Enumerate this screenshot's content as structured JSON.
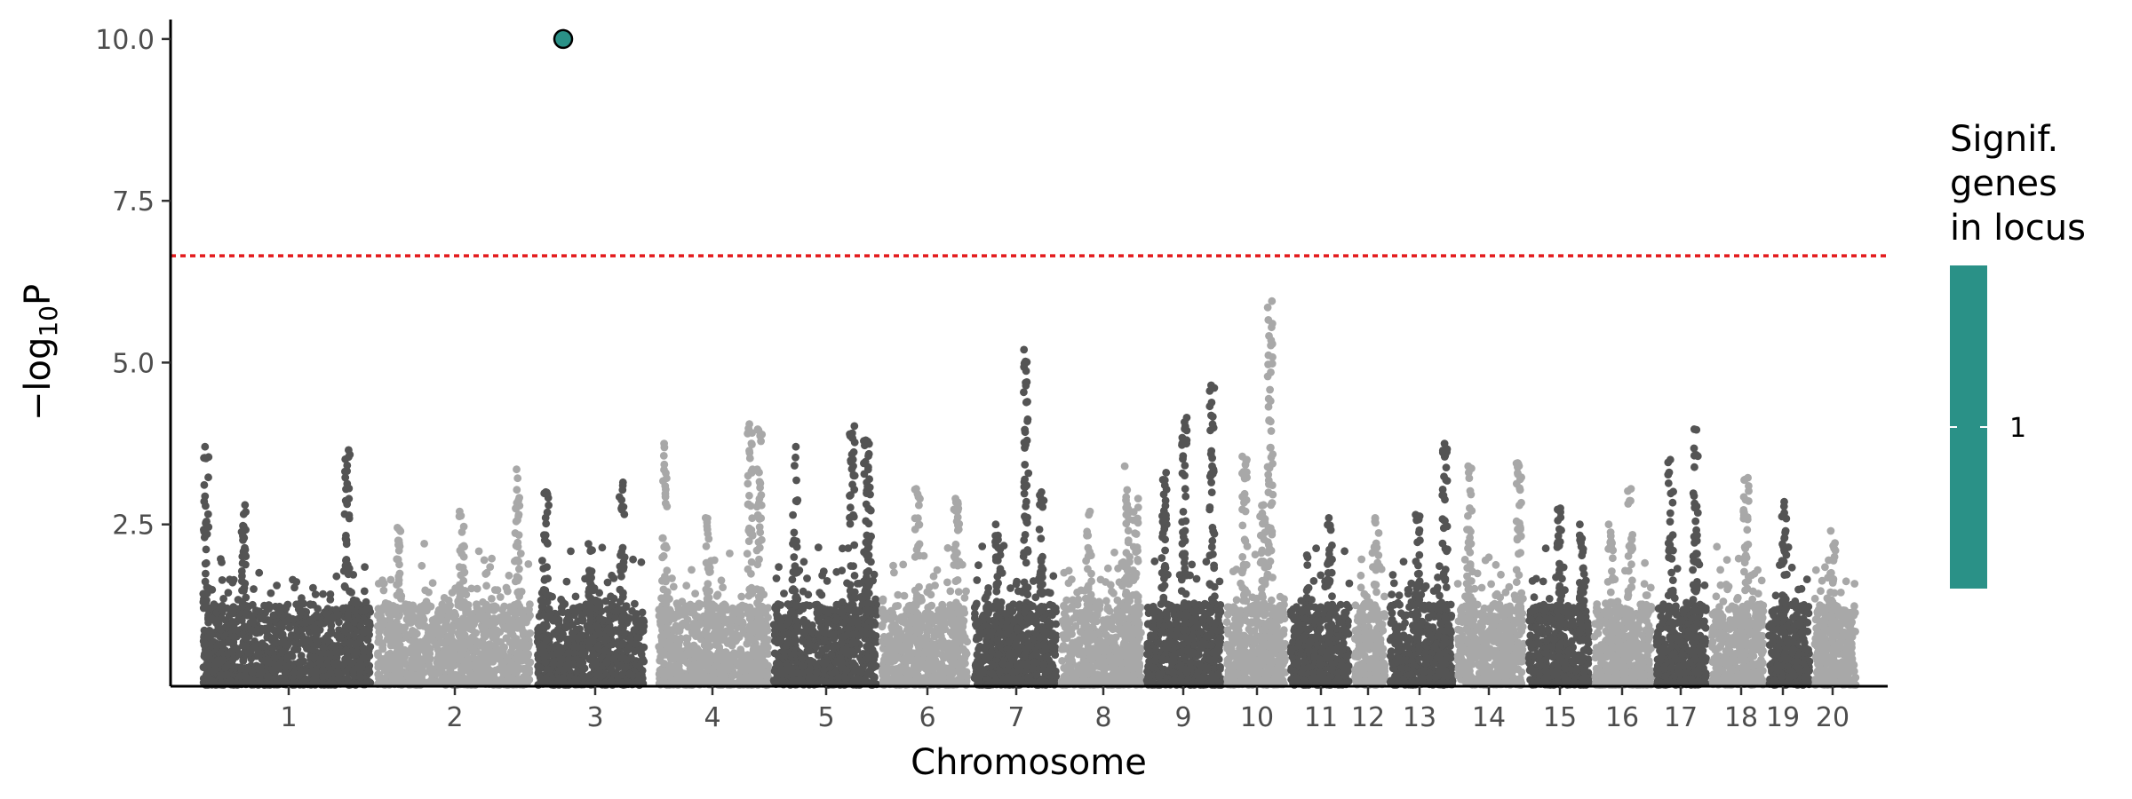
{
  "chart_data": {
    "type": "scatter",
    "subtype": "manhattan",
    "xlabel": "Chromosome",
    "ylabel_base": "−log",
    "ylabel_sub": "10",
    "ylabel_end": "P",
    "ylim": [
      0,
      10.3
    ],
    "y_ticks": [
      2.5,
      5.0,
      7.5,
      10.0
    ],
    "y_tick_labels": [
      "2.5",
      "5.0",
      "7.5",
      "10.0"
    ],
    "significance_threshold": 6.65,
    "threshold_color": "#e31a1c",
    "colors": {
      "dark": "#545454",
      "light": "#a8a8a8",
      "highlight": "#2a9187"
    },
    "grid": false,
    "chromosomes": [
      {
        "label": "1",
        "peaks": [
          [
            0.03,
            3.7
          ],
          [
            0.85,
            3.65
          ],
          [
            0.25,
            2.8
          ]
        ]
      },
      {
        "label": "2",
        "peaks": [
          [
            0.9,
            3.35
          ],
          [
            0.55,
            2.7
          ],
          [
            0.15,
            2.45
          ]
        ]
      },
      {
        "label": "3",
        "peaks": [
          [
            0.1,
            3.0
          ],
          [
            0.78,
            3.15
          ],
          [
            0.5,
            2.2
          ]
        ]
      },
      {
        "label": "4",
        "peaks": [
          [
            0.08,
            3.75
          ],
          [
            0.82,
            4.05
          ],
          [
            0.9,
            3.97
          ],
          [
            0.45,
            2.6
          ]
        ]
      },
      {
        "label": "5",
        "peaks": [
          [
            0.22,
            3.7
          ],
          [
            0.75,
            4.02
          ],
          [
            0.88,
            3.8
          ],
          [
            0.9,
            3.2
          ]
        ]
      },
      {
        "label": "6",
        "peaks": [
          [
            0.42,
            3.05
          ],
          [
            0.85,
            2.9
          ]
        ]
      },
      {
        "label": "7",
        "peaks": [
          [
            0.62,
            5.2
          ],
          [
            0.8,
            3.0
          ],
          [
            0.3,
            2.5
          ]
        ]
      },
      {
        "label": "8",
        "peaks": [
          [
            0.8,
            3.4
          ],
          [
            0.9,
            2.9
          ],
          [
            0.35,
            2.7
          ]
        ]
      },
      {
        "label": "9",
        "peaks": [
          [
            0.5,
            4.15
          ],
          [
            0.85,
            4.65
          ],
          [
            0.25,
            3.3
          ]
        ]
      },
      {
        "label": "10",
        "peaks": [
          [
            0.32,
            3.55
          ],
          [
            0.72,
            5.95
          ],
          [
            0.6,
            2.8
          ]
        ]
      },
      {
        "label": "11",
        "peaks": [
          [
            0.65,
            2.6
          ]
        ]
      },
      {
        "label": "12",
        "peaks": [
          [
            0.7,
            2.6
          ]
        ]
      },
      {
        "label": "13",
        "peaks": [
          [
            0.45,
            2.65
          ],
          [
            0.85,
            3.75
          ]
        ]
      },
      {
        "label": "14",
        "peaks": [
          [
            0.2,
            3.4
          ],
          [
            0.9,
            3.45
          ]
        ]
      },
      {
        "label": "15",
        "peaks": [
          [
            0.5,
            2.75
          ],
          [
            0.85,
            2.5
          ]
        ]
      },
      {
        "label": "16",
        "peaks": [
          [
            0.62,
            3.05
          ],
          [
            0.3,
            2.5
          ]
        ]
      },
      {
        "label": "17",
        "peaks": [
          [
            0.3,
            3.5
          ],
          [
            0.75,
            3.97
          ]
        ]
      },
      {
        "label": "18",
        "peaks": [
          [
            0.65,
            3.22
          ]
        ]
      },
      {
        "label": "19",
        "peaks": [
          [
            0.4,
            2.85
          ]
        ]
      },
      {
        "label": "20",
        "peaks": [
          [
            0.45,
            2.4
          ]
        ]
      }
    ],
    "highlighted_points": [
      {
        "chromosome": "3",
        "y": 10.0,
        "signif_genes": 1
      }
    ],
    "legend": {
      "title_lines": [
        "Signif.",
        "genes",
        "in locus"
      ],
      "tick_label": "1",
      "color": "#2a9187",
      "placement": "right"
    }
  }
}
